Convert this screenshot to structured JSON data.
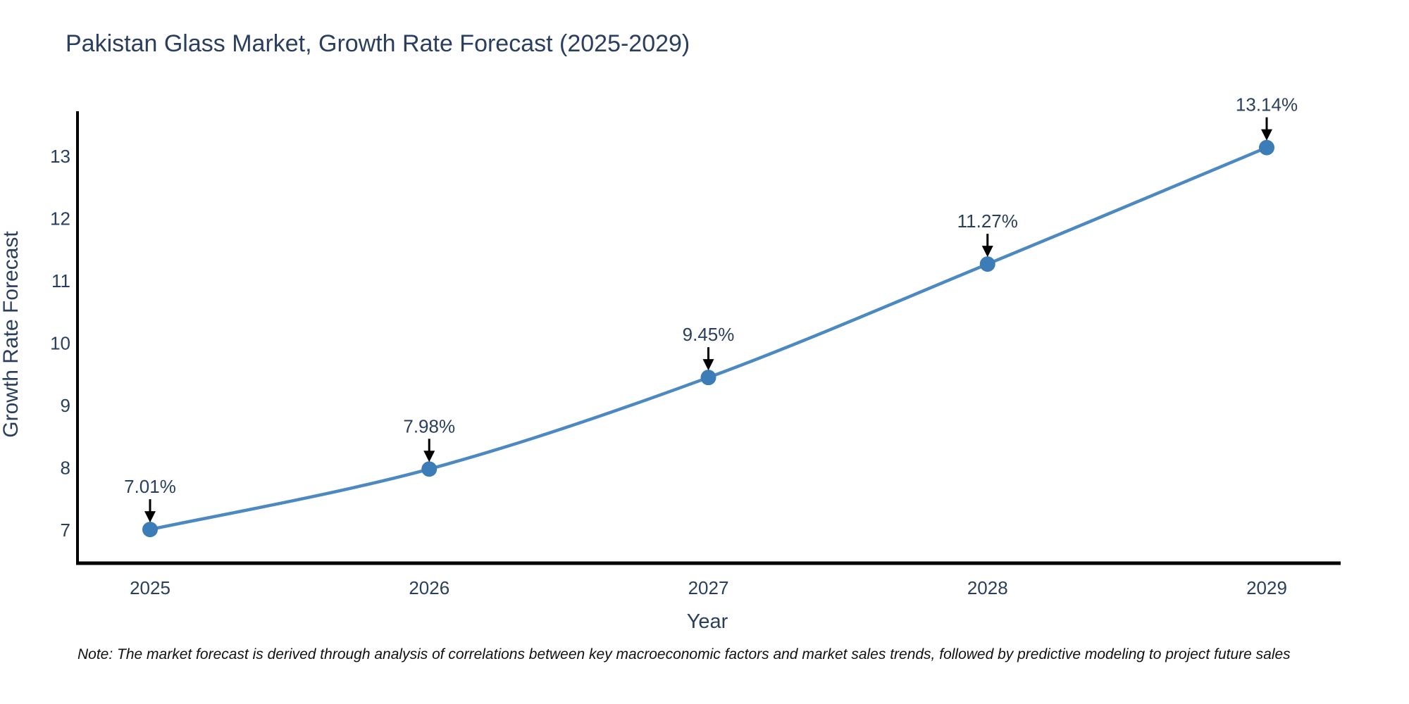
{
  "chart_data": {
    "type": "line",
    "title": "Pakistan Glass Market, Growth Rate Forecast (2025-2029)",
    "xlabel": "Year",
    "ylabel": "Growth Rate Forecast",
    "x": [
      2025,
      2026,
      2027,
      2028,
      2029
    ],
    "series": [
      {
        "name": "Growth Rate Forecast",
        "values": [
          7.01,
          7.98,
          9.45,
          11.27,
          13.14
        ],
        "point_labels": [
          "7.01%",
          "7.98%",
          "9.45%",
          "11.27%",
          "13.14%"
        ]
      }
    ],
    "yticks": [
      7,
      8,
      9,
      10,
      11,
      12,
      13
    ],
    "ylim": [
      6.45,
      13.7
    ],
    "grid": false,
    "legend_position": "none",
    "line_shape": "spline",
    "annotation_arrows": true,
    "colors": {
      "line": "#4c89c0",
      "marker": "#3c7db8",
      "axis": "#000000",
      "arrow": "#000000",
      "text": "#2a3f5f",
      "note_text": "#111111",
      "background": "#ffffff"
    }
  },
  "note": "Note: The market forecast is derived through analysis of correlations between key macroeconomic factors and market sales trends, followed by predictive modeling to project future sales"
}
